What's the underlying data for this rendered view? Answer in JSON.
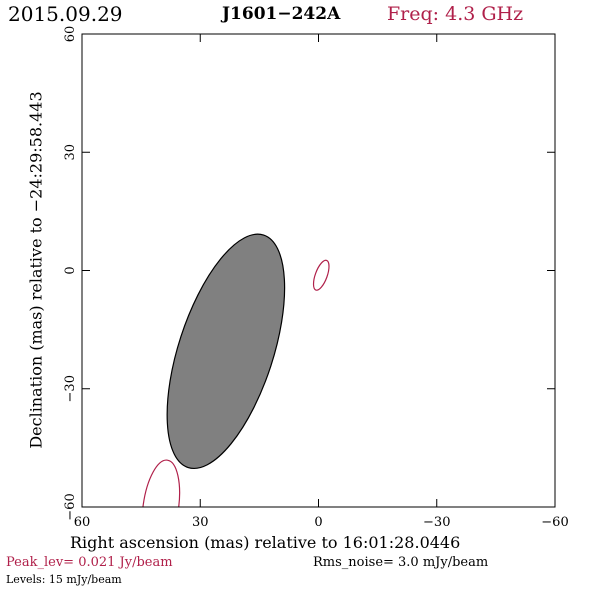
{
  "header": {
    "date": "2015.09.29",
    "source": "J1601−242A",
    "freq": "Freq: 4.3 GHz"
  },
  "chart_data": {
    "type": "contour",
    "xlabel": "Right ascension (mas) relative to 16:01:28.0446",
    "ylabel": "Declination (mas) relative to −24:29:58.443",
    "xlim": [
      60,
      -60
    ],
    "ylim": [
      -60,
      60
    ],
    "x_ticks": [
      60,
      30,
      0,
      -30,
      -60
    ],
    "y_ticks": [
      60,
      30,
      0,
      -30,
      -60
    ],
    "x_tick_labels": [
      "60",
      "30",
      "0",
      "−30",
      "−60"
    ],
    "y_tick_labels": [
      "60",
      "30",
      "0",
      "−30",
      "−60"
    ],
    "beam": {
      "ra": 23.5,
      "dec": -20.5,
      "major_mas": 62,
      "minor_mas": 24,
      "pa_deg": 18,
      "color": "#808080"
    },
    "contours": [
      {
        "ra": -0.7,
        "dec": -1.2,
        "major_mas": 8,
        "minor_mas": 3,
        "pa_deg": 20,
        "color": "#b0204a"
      },
      {
        "ra": 40,
        "dec": -60,
        "major_mas": 24,
        "minor_mas": 9,
        "pa_deg": 8,
        "color": "#b0204a"
      }
    ],
    "peak_lev": "Peak_lev=  0.021 Jy/beam",
    "rms_noise": "Rms_noise=   3.0 mJy/beam",
    "levels": "Levels:  15 mJy/beam"
  }
}
